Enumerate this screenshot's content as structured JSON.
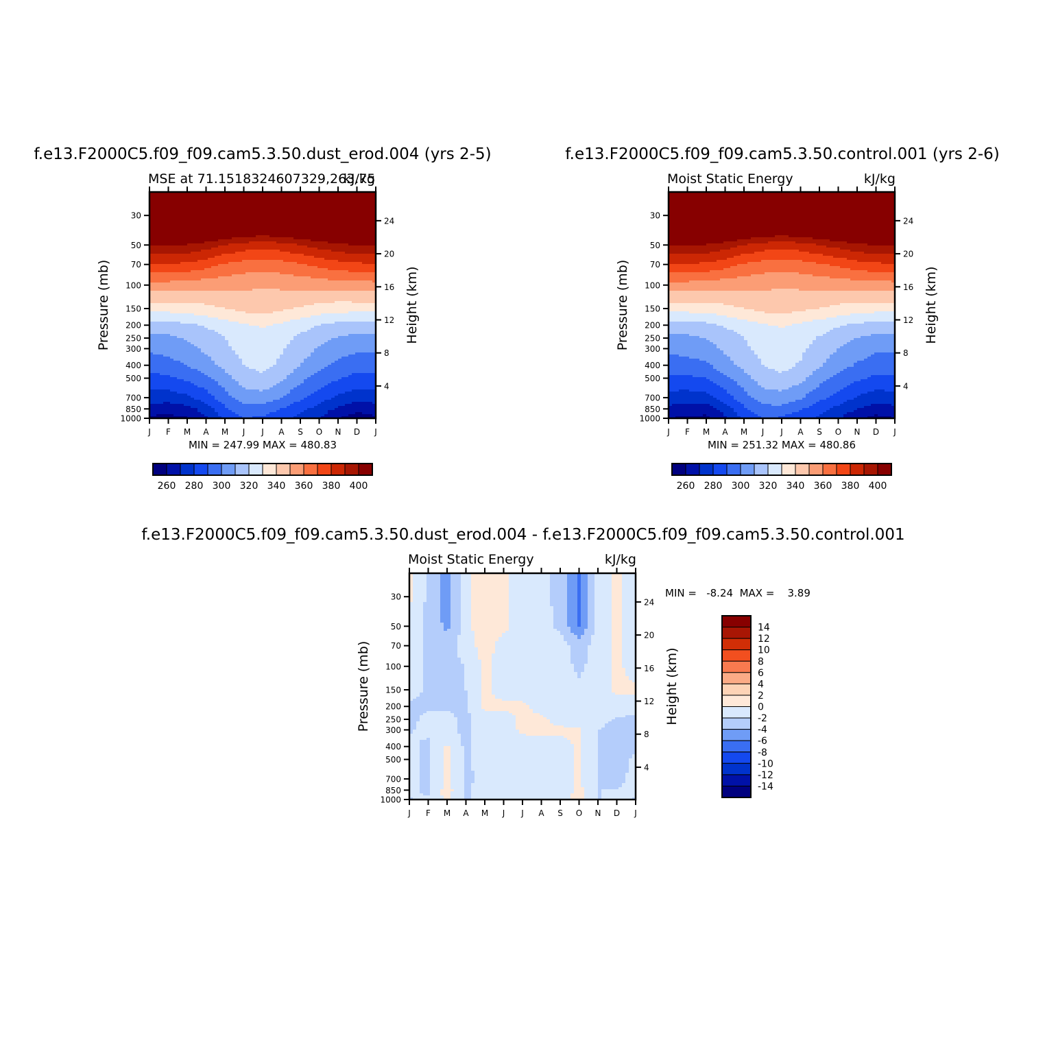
{
  "palette": {
    "full": [
      "#00007f",
      "#0011a8",
      "#0033cc",
      "#1449ef",
      "#3a6ef2",
      "#6f9cf6",
      "#a9c4fb",
      "#d9e9fd",
      "#fee8d8",
      "#fdc8ad",
      "#fb9d75",
      "#f97040",
      "#f24616",
      "#cc2704",
      "#a71602",
      "#870000"
    ],
    "diff": [
      "#00007f",
      "#0011a8",
      "#0033cc",
      "#1449ef",
      "#3a6ef2",
      "#6f9cf6",
      "#b4cdfb",
      "#d9e9fd",
      "#fee8d8",
      "#fdd3b6",
      "#fbab86",
      "#f97a4f",
      "#f24f1f",
      "#d12e06",
      "#a81604",
      "#870000"
    ]
  },
  "axes": {
    "pressure_label": "Pressure (mb)",
    "height_label": "Height (km)",
    "pressure_ticks": [
      30,
      50,
      70,
      100,
      150,
      200,
      250,
      300,
      400,
      500,
      700,
      850,
      1000
    ],
    "height_ticks": [
      4,
      8,
      12,
      16,
      20,
      24
    ],
    "month_ticks": [
      "J",
      "F",
      "M",
      "A",
      "M",
      "J",
      "J",
      "A",
      "S",
      "O",
      "N",
      "D",
      "J"
    ]
  },
  "panel1": {
    "title": "f.e13.F2000C5.f09_f09.cam5.3.50.dust_erod.004 (yrs 2-5)",
    "subtitle_left": "MSE at 71.1518324607329,263.75",
    "subtitle_right": "kJ/kg",
    "stats": "MIN = 247.99  MAX = 480.83"
  },
  "panel2": {
    "title": "f.e13.F2000C5.f09_f09.cam5.3.50.control.001 (yrs 2-6)",
    "subtitle_left": "Moist Static Energy",
    "subtitle_right": "kJ/kg",
    "stats": "MIN = 251.32  MAX = 480.86"
  },
  "panel3": {
    "title": "f.e13.F2000C5.f09_f09.cam5.3.50.dust_erod.004 - f.e13.F2000C5.f09_f09.cam5.3.50.control.001",
    "subtitle_left": "Moist Static Energy",
    "subtitle_right": "kJ/kg",
    "stats": "MIN =   -8.24  MAX =    3.89"
  },
  "colorbar_full": {
    "labels": [
      "260",
      "280",
      "300",
      "320",
      "340",
      "360",
      "380",
      "400"
    ]
  },
  "colorbar_diff": {
    "labels": [
      "14",
      "12",
      "10",
      "8",
      "6",
      "4",
      "2",
      "0",
      "-2",
      "-4",
      "-6",
      "-8",
      "-10",
      "-12",
      "-14"
    ]
  },
  "chart_data": [
    {
      "type": "heatmap",
      "title": "f.e13.F2000C5.f09_f09.cam5.3.50.dust_erod.004 (yrs 2-5)",
      "subtitle": "MSE at 71.1518324607329,263.75",
      "units": "kJ/kg",
      "xlabel": "",
      "ylabel": "Pressure (mb)",
      "y2label": "Height (km)",
      "x": [
        "J",
        "F",
        "M",
        "A",
        "M",
        "J",
        "J",
        "A",
        "S",
        "O",
        "N",
        "D",
        "J"
      ],
      "y_levels_mb": [
        1000,
        850,
        700,
        500,
        400,
        300,
        250,
        200,
        150,
        100,
        70,
        50,
        30
      ],
      "ylim": [
        1000,
        20
      ],
      "contour_levels": [
        260,
        270,
        280,
        290,
        300,
        310,
        320,
        330,
        340,
        350,
        360,
        370,
        380,
        390,
        400
      ],
      "min": 247.99,
      "max": 480.83,
      "z": [
        [
          258,
          257,
          259,
          268,
          283,
          290,
          288,
          282,
          277,
          270,
          260,
          255,
          258
        ],
        [
          265,
          264,
          266,
          275,
          288,
          297,
          296,
          290,
          283,
          276,
          268,
          263,
          265
        ],
        [
          275,
          275,
          278,
          285,
          296,
          305,
          306,
          300,
          292,
          285,
          278,
          274,
          275
        ],
        [
          287,
          288,
          292,
          298,
          306,
          315,
          318,
          312,
          303,
          296,
          291,
          287,
          287
        ],
        [
          294,
          296,
          300,
          306,
          313,
          320,
          323,
          318,
          310,
          303,
          298,
          294,
          294
        ],
        [
          302,
          304,
          307,
          312,
          318,
          323,
          325,
          321,
          315,
          309,
          304,
          302,
          302
        ],
        [
          307,
          308,
          311,
          315,
          320,
          325,
          327,
          323,
          318,
          313,
          309,
          307,
          307
        ],
        [
          316,
          316,
          318,
          321,
          325,
          329,
          331,
          328,
          324,
          320,
          317,
          316,
          316
        ],
        [
          334,
          334,
          335,
          337,
          340,
          343,
          344,
          342,
          339,
          336,
          334,
          334,
          334
        ],
        [
          356,
          356,
          356,
          354,
          353,
          352,
          351,
          352,
          353,
          354,
          355,
          356,
          356
        ],
        [
          379,
          379,
          378,
          374,
          369,
          366,
          365,
          366,
          369,
          373,
          376,
          378,
          379
        ],
        [
          401,
          401,
          399,
          395,
          390,
          386,
          384,
          386,
          390,
          394,
          398,
          400,
          401
        ],
        [
          450,
          450,
          448,
          445,
          440,
          437,
          436,
          437,
          440,
          444,
          447,
          449,
          450
        ]
      ]
    },
    {
      "type": "heatmap",
      "title": "f.e13.F2000C5.f09_f09.cam5.3.50.control.001 (yrs 2-6)",
      "subtitle": "Moist Static Energy",
      "units": "kJ/kg",
      "xlabel": "",
      "ylabel": "Pressure (mb)",
      "y2label": "Height (km)",
      "x": [
        "J",
        "F",
        "M",
        "A",
        "M",
        "J",
        "J",
        "A",
        "S",
        "O",
        "N",
        "D",
        "J"
      ],
      "y_levels_mb": [
        1000,
        850,
        700,
        500,
        400,
        300,
        250,
        200,
        150,
        100,
        70,
        50,
        30
      ],
      "ylim": [
        1000,
        20
      ],
      "contour_levels": [
        260,
        270,
        280,
        290,
        300,
        310,
        320,
        330,
        340,
        350,
        360,
        370,
        380,
        390,
        400
      ],
      "min": 251.32,
      "max": 480.86,
      "z": [
        [
          260,
          258,
          258,
          268,
          283,
          290,
          289,
          283,
          278,
          271,
          262,
          257,
          260
        ],
        [
          267,
          265,
          264,
          275,
          288,
          297,
          297,
          291,
          284,
          277,
          270,
          265,
          267
        ],
        [
          276,
          275,
          276,
          285,
          296,
          305,
          306,
          301,
          293,
          286,
          279,
          275,
          276
        ],
        [
          288,
          288,
          290,
          298,
          306,
          315,
          318,
          313,
          304,
          297,
          292,
          288,
          288
        ],
        [
          295,
          296,
          298,
          306,
          313,
          320,
          323,
          319,
          311,
          304,
          299,
          295,
          295
        ],
        [
          302,
          304,
          306,
          312,
          318,
          323,
          325,
          322,
          316,
          310,
          305,
          302,
          302
        ],
        [
          307,
          308,
          310,
          315,
          320,
          325,
          327,
          324,
          319,
          314,
          310,
          307,
          307
        ],
        [
          316,
          316,
          317,
          321,
          325,
          329,
          331,
          328,
          325,
          321,
          318,
          316,
          316
        ],
        [
          334,
          334,
          335,
          337,
          340,
          343,
          344,
          342,
          340,
          337,
          335,
          334,
          334
        ],
        [
          356,
          356,
          356,
          354,
          353,
          352,
          351,
          352,
          353,
          354,
          355,
          356,
          356
        ],
        [
          379,
          379,
          378,
          374,
          369,
          366,
          365,
          366,
          369,
          372,
          376,
          378,
          379
        ],
        [
          401,
          401,
          399,
          395,
          390,
          386,
          384,
          386,
          390,
          394,
          398,
          400,
          401
        ],
        [
          450,
          450,
          448,
          445,
          440,
          437,
          436,
          437,
          440,
          444,
          447,
          449,
          450
        ]
      ]
    },
    {
      "type": "heatmap",
      "title": "f.e13.F2000C5.f09_f09.cam5.3.50.dust_erod.004 - f.e13.F2000C5.f09_f09.cam5.3.50.control.001",
      "subtitle": "Moist Static Energy",
      "units": "kJ/kg",
      "xlabel": "",
      "ylabel": "Pressure (mb)",
      "y2label": "Height (km)",
      "x": [
        "J",
        "F",
        "M",
        "A",
        "M",
        "J",
        "J",
        "A",
        "S",
        "O",
        "N",
        "D",
        "J"
      ],
      "y_levels_mb": [
        1000,
        850,
        700,
        500,
        400,
        300,
        250,
        200,
        150,
        100,
        70,
        50,
        30
      ],
      "ylim": [
        1000,
        20
      ],
      "contour_levels": [
        -14,
        -12,
        -10,
        -8,
        -6,
        -4,
        -2,
        0,
        2,
        4,
        6,
        8,
        10,
        12,
        14
      ],
      "min": -8.24,
      "max": 3.89,
      "z": [
        [
          -2.2,
          -1.5,
          0.5,
          -2.3,
          -1.0,
          -0.8,
          -0.8,
          -0.5,
          -0.5,
          0.5,
          -2.2,
          -1.2,
          -2.2
        ],
        [
          -1.5,
          -2.5,
          1.0,
          -2.5,
          -1.0,
          -1.0,
          -1.0,
          -1.0,
          -1.0,
          0.5,
          -2.0,
          -2.0,
          -1.5
        ],
        [
          -1.5,
          -2.5,
          0.6,
          -2.5,
          -1.2,
          -1.0,
          -1.0,
          -1.0,
          -1.0,
          0.3,
          -2.0,
          -2.5,
          -1.5
        ],
        [
          -1.5,
          -2.5,
          0.5,
          -2.5,
          -1.0,
          -1.0,
          -1.0,
          -1.0,
          -1.0,
          0.3,
          -2.0,
          -2.5,
          -1.8
        ],
        [
          -1.5,
          -2.5,
          0.4,
          -2.5,
          -1.0,
          -1.0,
          -1.0,
          -1.0,
          -0.8,
          0.3,
          -2.0,
          -2.5,
          -2.2
        ],
        [
          -2.2,
          -1.5,
          -1.5,
          -2.5,
          -1.0,
          -1.0,
          0.4,
          0.5,
          0.5,
          0.3,
          -2.0,
          -2.5,
          -2.5
        ],
        [
          -2.5,
          -1.5,
          -1.5,
          -2.5,
          -1.0,
          -1.0,
          0.5,
          0.5,
          -1.0,
          -1.0,
          -1.5,
          -2.2,
          -2.5
        ],
        [
          -2.5,
          -2.2,
          -2.2,
          -2.2,
          0.5,
          0.5,
          0.5,
          -1.0,
          -1.0,
          -1.5,
          -1.0,
          -1.0,
          -1.0
        ],
        [
          -1.0,
          -2.5,
          -2.5,
          -2.0,
          0.5,
          -1.0,
          -1.0,
          -1.0,
          -1.0,
          -1.5,
          -1.0,
          0.4,
          0.5
        ],
        [
          -1.0,
          -2.5,
          -2.5,
          -2.0,
          0.5,
          -1.0,
          -1.0,
          -1.0,
          -1.0,
          -2.5,
          -1.0,
          0.5,
          -1.0
        ],
        [
          -1.0,
          -2.5,
          -3.0,
          -1.0,
          1.0,
          -1.0,
          -1.0,
          -1.0,
          -1.0,
          -3.0,
          -1.0,
          0.5,
          -1.0
        ],
        [
          -1.0,
          -2.5,
          -4.5,
          -1.0,
          2.0,
          0.5,
          -1.0,
          -1.0,
          -2.5,
          -6.0,
          -1.0,
          0.5,
          -1.0
        ],
        [
          0.5,
          -2.5,
          -5.0,
          -1.0,
          2.0,
          0.5,
          -1.0,
          -1.0,
          -3.0,
          -6.5,
          -1.0,
          0.5,
          -1.5
        ]
      ]
    }
  ]
}
